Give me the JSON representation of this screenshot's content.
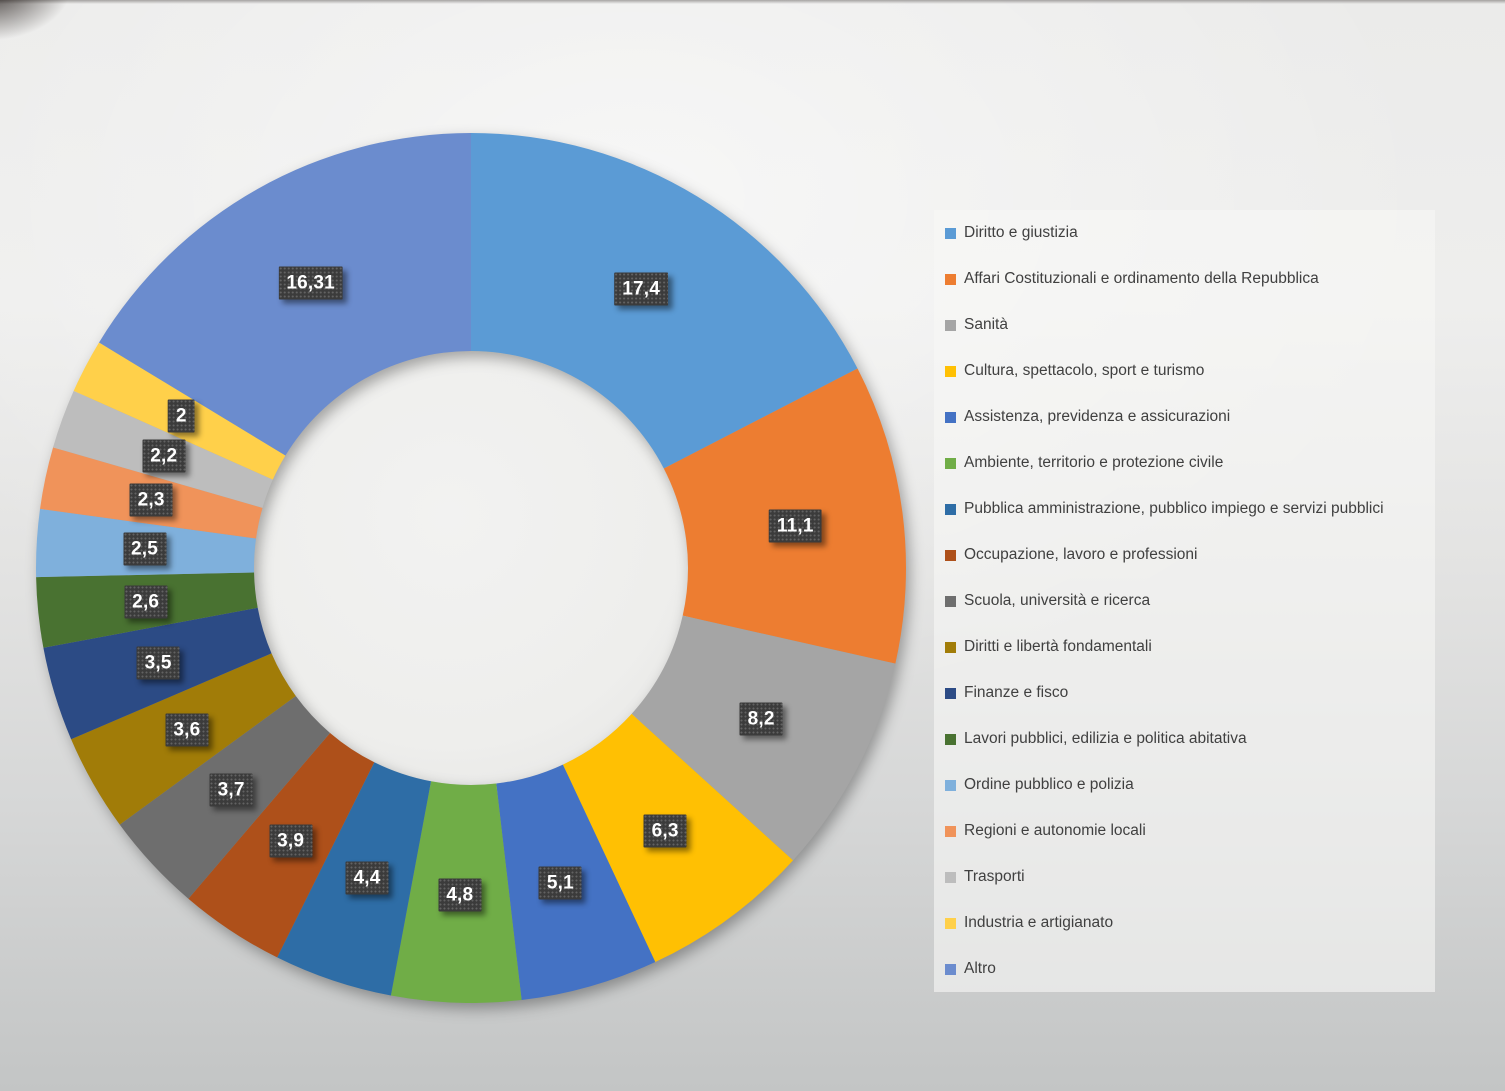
{
  "chart_data": {
    "type": "pie",
    "subtype": "doughnut",
    "title": "",
    "legend_position": "right",
    "start_angle_deg": 0,
    "direction": "clockwise",
    "donut_hole_ratio": 0.5,
    "decimal_separator": ",",
    "categories": [
      "Diritto e giustizia",
      "Affari Costituzionali e ordinamento della Repubblica",
      "Sanità",
      "Cultura, spettacolo, sport e turismo",
      "Assistenza, previdenza e assicurazioni",
      "Ambiente, territorio e protezione civile",
      "Pubblica amministrazione, pubblico impiego e servizi pubblici",
      "Occupazione, lavoro e professioni",
      "Scuola, università e ricerca",
      "Diritti e libertà fondamentali",
      "Finanze e fisco",
      "Lavori pubblici, edilizia e politica abitativa",
      "Ordine pubblico e polizia",
      "Regioni e autonomie locali",
      "Trasporti",
      "Industria e artigianato",
      "Altro"
    ],
    "values": [
      17.4,
      11.1,
      8.2,
      6.3,
      5.1,
      4.8,
      4.4,
      3.9,
      3.7,
      3.6,
      3.5,
      2.6,
      2.5,
      2.3,
      2.2,
      2,
      16.31
    ],
    "value_labels": [
      "17,4",
      "11,1",
      "8,2",
      "6,3",
      "5,1",
      "4,8",
      "4,4",
      "3,9",
      "3,7",
      "3,6",
      "3,5",
      "2,6",
      "2,5",
      "2,3",
      "2,2",
      "2",
      "16,31"
    ],
    "colors": [
      "#5B9BD5",
      "#ED7D31",
      "#A5A5A5",
      "#FFC003",
      "#4472C4",
      "#70AD47",
      "#2E6DA6",
      "#AE501A",
      "#6E6E6E",
      "#A17C08",
      "#2C4B85",
      "#497231",
      "#7FB0DC",
      "#F0935A",
      "#BDBDBD",
      "#FFD04A",
      "#6B8CCE"
    ],
    "label_style": {
      "background": "#3b3b3b",
      "text_color": "#ffffff"
    }
  },
  "legend": {
    "position": "right",
    "text_color": "#404040",
    "items": [
      "Diritto e giustizia",
      "Affari Costituzionali e ordinamento della Repubblica",
      "Sanità",
      "Cultura, spettacolo, sport e turismo",
      "Assistenza, previdenza e assicurazioni",
      "Ambiente, territorio e protezione civile",
      "Pubblica amministrazione, pubblico impiego e servizi pubblici",
      "Occupazione, lavoro e professioni",
      "Scuola, università e ricerca",
      "Diritti e libertà fondamentali",
      "Finanze e fisco",
      "Lavori pubblici, edilizia e politica abitativa",
      "Ordine pubblico e polizia",
      "Regioni e autonomie locali",
      "Trasporti",
      "Industria e artigianato",
      "Altro"
    ]
  }
}
